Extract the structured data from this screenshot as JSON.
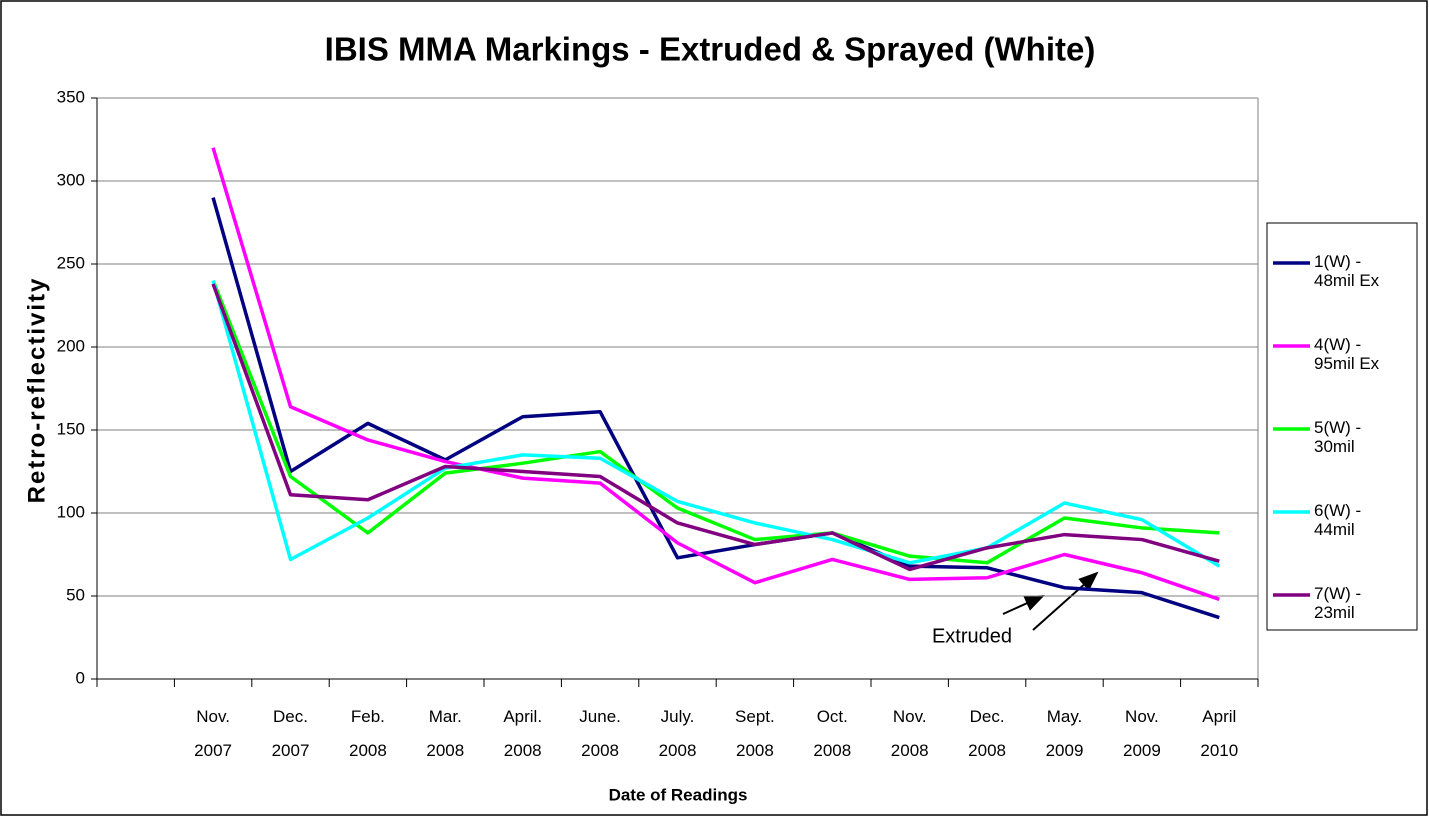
{
  "chart_data": {
    "type": "line",
    "title": "IBIS MMA Markings - Extruded & Sprayed (White)",
    "y_label": "Retro-reflectivity",
    "x_label": "Date of Readings",
    "annotation": "Extruded",
    "categories": [
      null,
      "Nov. 2007",
      "Dec. 2007",
      "Feb. 2008",
      "Mar. 2008",
      "April. 2008",
      "June. 2008",
      "July. 2008",
      "Sept. 2008",
      "Oct. 2008",
      "Nov. 2008",
      "Dec. 2008",
      "May. 2009",
      "Nov. 2009",
      "April 2010"
    ],
    "series": [
      {
        "name": "1(W) - 48mil Ex",
        "color": "#000080",
        "values": [
          null,
          290,
          125,
          154,
          132,
          158,
          161,
          73,
          81,
          88,
          68,
          67,
          55,
          52,
          37
        ]
      },
      {
        "name": "4(W) - 95mil Ex",
        "color": "#ff00ff",
        "values": [
          null,
          320,
          164,
          144,
          131,
          121,
          118,
          82,
          58,
          72,
          60,
          61,
          75,
          64,
          48
        ]
      },
      {
        "name": "5(W) - 30mil",
        "color": "#00ff00",
        "values": [
          null,
          240,
          122,
          88,
          124,
          130,
          137,
          103,
          84,
          88,
          74,
          70,
          97,
          91,
          88
        ]
      },
      {
        "name": "6(W) - 44mil",
        "color": "#00ffff",
        "values": [
          null,
          240,
          72,
          97,
          127,
          135,
          133,
          107,
          94,
          84,
          70,
          79,
          106,
          96,
          68
        ]
      },
      {
        "name": "7(W) - 23mil",
        "color": "#800080",
        "values": [
          null,
          238,
          111,
          108,
          128,
          125,
          122,
          94,
          81,
          88,
          66,
          79,
          87,
          84,
          71
        ]
      }
    ],
    "ylim": [
      0,
      350
    ],
    "yticks": [
      0,
      50,
      100,
      150,
      200,
      250,
      300,
      350
    ],
    "grid": true,
    "legend": "right"
  }
}
